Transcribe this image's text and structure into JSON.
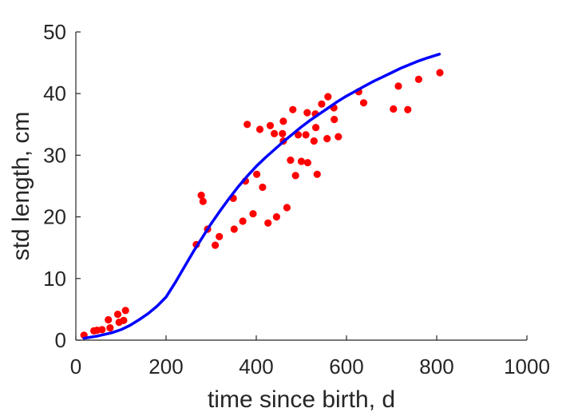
{
  "chart_data": {
    "type": "scatter",
    "title": "",
    "xlabel": "time since birth, d",
    "ylabel": "std length, cm",
    "xlim": [
      0,
      1000
    ],
    "ylim": [
      0,
      50
    ],
    "xticks": [
      0,
      200,
      400,
      600,
      800,
      1000
    ],
    "yticks": [
      0,
      10,
      20,
      30,
      40,
      50
    ],
    "grid": false,
    "legend": "none",
    "colors": {
      "points": "#ff0000",
      "curve": "#0000ff",
      "axis": "#262626"
    },
    "series": [
      {
        "kind": "scatter",
        "points": [
          [
            18,
            0.8
          ],
          [
            40,
            1.5
          ],
          [
            47,
            1.6
          ],
          [
            58,
            1.7
          ],
          [
            72,
            3.3
          ],
          [
            76,
            2.0
          ],
          [
            93,
            4.2
          ],
          [
            96,
            2.9
          ],
          [
            106,
            3.2
          ],
          [
            110,
            4.8
          ],
          [
            267,
            15.5
          ],
          [
            278,
            23.5
          ],
          [
            282,
            22.5
          ],
          [
            292,
            18.0
          ],
          [
            309,
            15.4
          ],
          [
            318,
            16.8
          ],
          [
            349,
            23.0
          ],
          [
            351,
            18.0
          ],
          [
            370,
            19.3
          ],
          [
            376,
            25.8
          ],
          [
            380,
            35.0
          ],
          [
            393,
            20.5
          ],
          [
            401,
            26.9
          ],
          [
            408,
            34.2
          ],
          [
            414,
            24.8
          ],
          [
            426,
            19.0
          ],
          [
            431,
            34.8
          ],
          [
            440,
            33.5
          ],
          [
            445,
            20.0
          ],
          [
            458,
            33.5
          ],
          [
            460,
            35.5
          ],
          [
            460,
            32.3
          ],
          [
            468,
            21.5
          ],
          [
            476,
            29.2
          ],
          [
            481,
            37.4
          ],
          [
            487,
            26.7
          ],
          [
            493,
            33.3
          ],
          [
            500,
            29.0
          ],
          [
            510,
            33.3
          ],
          [
            513,
            36.9
          ],
          [
            514,
            28.8
          ],
          [
            528,
            32.3
          ],
          [
            531,
            36.7
          ],
          [
            532,
            34.5
          ],
          [
            535,
            26.9
          ],
          [
            545,
            38.3
          ],
          [
            557,
            32.7
          ],
          [
            559,
            39.5
          ],
          [
            572,
            37.7
          ],
          [
            573,
            35.8
          ],
          [
            582,
            33.0
          ],
          [
            627,
            40.3
          ],
          [
            638,
            38.5
          ],
          [
            704,
            37.5
          ],
          [
            715,
            41.2
          ],
          [
            736,
            37.4
          ],
          [
            760,
            42.3
          ],
          [
            807,
            43.4
          ]
        ]
      },
      {
        "kind": "line",
        "points": [
          [
            18,
            0.3
          ],
          [
            50,
            0.7
          ],
          [
            80,
            1.2
          ],
          [
            100,
            1.7
          ],
          [
            120,
            2.4
          ],
          [
            140,
            3.3
          ],
          [
            160,
            4.3
          ],
          [
            180,
            5.5
          ],
          [
            200,
            7.0
          ],
          [
            220,
            9.3
          ],
          [
            240,
            11.8
          ],
          [
            260,
            14.3
          ],
          [
            280,
            16.6
          ],
          [
            300,
            18.9
          ],
          [
            320,
            21.0
          ],
          [
            340,
            23.0
          ],
          [
            360,
            24.9
          ],
          [
            380,
            26.6
          ],
          [
            400,
            28.2
          ],
          [
            420,
            29.6
          ],
          [
            440,
            30.9
          ],
          [
            460,
            32.2
          ],
          [
            480,
            33.4
          ],
          [
            500,
            34.6
          ],
          [
            520,
            35.7
          ],
          [
            540,
            36.7
          ],
          [
            560,
            37.7
          ],
          [
            580,
            38.7
          ],
          [
            600,
            39.6
          ],
          [
            620,
            40.4
          ],
          [
            640,
            41.2
          ],
          [
            660,
            42.0
          ],
          [
            680,
            42.7
          ],
          [
            700,
            43.4
          ],
          [
            720,
            44.1
          ],
          [
            740,
            44.7
          ],
          [
            760,
            45.3
          ],
          [
            780,
            45.8
          ],
          [
            806,
            46.4
          ]
        ]
      }
    ]
  }
}
